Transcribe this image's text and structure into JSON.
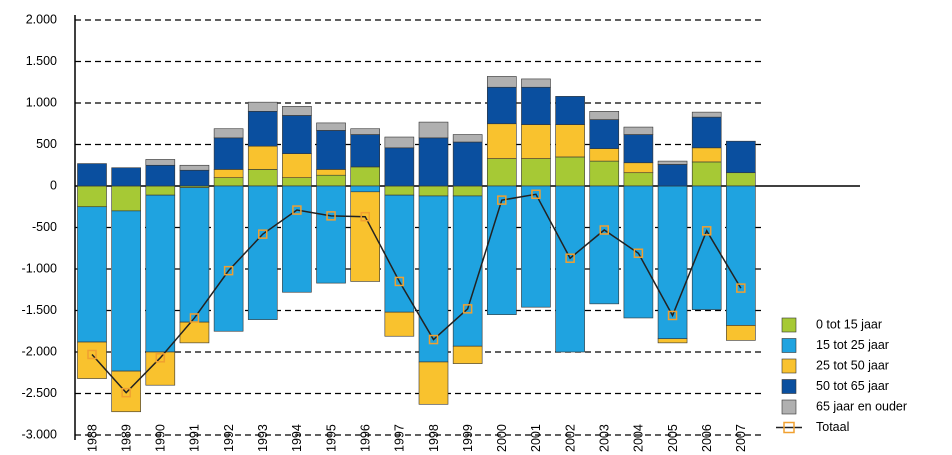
{
  "chart_data": {
    "type": "bar",
    "stacked": true,
    "categories": [
      "1988",
      "1989",
      "1990",
      "1991",
      "1992",
      "1993",
      "1994",
      "1995",
      "1996",
      "1997",
      "1998",
      "1999",
      "2000",
      "2001",
      "2002",
      "2003",
      "2004",
      "2005",
      "2006",
      "2007"
    ],
    "series": [
      {
        "name": "0 tot 15 jaar",
        "color": "#a6c935",
        "values": [
          -250,
          -300,
          -110,
          -20,
          100,
          200,
          100,
          130,
          230,
          -110,
          -120,
          -120,
          330,
          330,
          350,
          300,
          160,
          0,
          290,
          160
        ]
      },
      {
        "name": "15 tot 25 jaar",
        "color": "#1fa3e0",
        "values": [
          -1630,
          -1930,
          -1890,
          -1620,
          -1750,
          -1610,
          -1280,
          -1170,
          -70,
          -1410,
          -2000,
          -1810,
          -1550,
          -1460,
          -2000,
          -1420,
          -1590,
          -1840,
          -1490,
          -1680
        ]
      },
      {
        "name": "25 tot 50 jaar",
        "color": "#f9c22e",
        "values": [
          -440,
          -490,
          -400,
          -250,
          100,
          280,
          290,
          70,
          -1080,
          -290,
          -510,
          -210,
          420,
          410,
          390,
          150,
          120,
          -50,
          170,
          -180
        ]
      },
      {
        "name": "50 tot 65 jaar",
        "color": "#0a4f9f",
        "values": [
          270,
          220,
          250,
          190,
          380,
          420,
          460,
          470,
          390,
          460,
          580,
          530,
          440,
          450,
          340,
          350,
          340,
          260,
          370,
          380
        ]
      },
      {
        "name": "65 jaar en ouder",
        "color": "#b0b0b0",
        "values": [
          0,
          0,
          70,
          60,
          110,
          110,
          110,
          90,
          70,
          130,
          190,
          90,
          130,
          100,
          0,
          100,
          90,
          40,
          60,
          0
        ]
      }
    ],
    "total": {
      "name": "Totaal",
      "color": "#f0a030",
      "line_color": "#222222",
      "values": [
        -2030,
        -2490,
        -2070,
        -1590,
        -1020,
        -580,
        -290,
        -360,
        -370,
        -1150,
        -1850,
        -1480,
        -170,
        -100,
        -870,
        -530,
        -810,
        -1560,
        -540,
        -1230
      ]
    },
    "ylim": [
      -3000,
      2000
    ],
    "yticks": [
      {
        "value": -3000,
        "label": "-3.000"
      },
      {
        "value": -2500,
        "label": "-2.500"
      },
      {
        "value": -2000,
        "label": "-2.000"
      },
      {
        "value": -1500,
        "label": "-1.500"
      },
      {
        "value": -1000,
        "label": "-1.000"
      },
      -500,
      0,
      500,
      {
        "value": 1000,
        "label": "1.000"
      },
      {
        "value": 1500,
        "label": "1.500"
      },
      {
        "value": 2000,
        "label": "2.000"
      }
    ],
    "grid": true,
    "legend": "bottom-right"
  }
}
